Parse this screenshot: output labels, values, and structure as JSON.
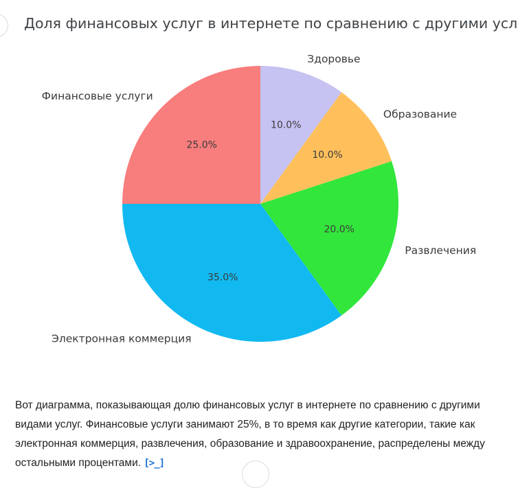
{
  "title": "Доля финансовых услуг в интернете по сравнению с другими услугами",
  "chart_data": {
    "type": "pie",
    "title": "Доля финансовых услуг в интернете по сравнению с другими услугами",
    "labels": [
      "Здоровье",
      "Образование",
      "Развлечения",
      "Электронная коммерция",
      "Финансовые услуги"
    ],
    "values": [
      10,
      10,
      20,
      35,
      25
    ],
    "percent_labels": [
      "10.0%",
      "10.0%",
      "20.0%",
      "35.0%",
      "25.0%"
    ],
    "colors": [
      "#C6C2F2",
      "#FFC05C",
      "#33E63C",
      "#12B9F0",
      "#F87D7D"
    ],
    "start_angle": "top",
    "direction": "clockwise",
    "legend": "none",
    "label_position": "outside",
    "percent_position": "inside"
  },
  "message": {
    "text": "Вот диаграмма, показывающая долю финансовых услуг в интернете по сравнению с другими видами услуг. Финансовые услуги занимают 25%, в то время как другие категории, такие как электронная коммерция, развлечения, образование и здравоохранение, распределены между остальными процентами."
  },
  "icons": {
    "code_reference": "[>_]"
  },
  "accent_colors": {
    "link_blue": "#1a6fd4"
  }
}
